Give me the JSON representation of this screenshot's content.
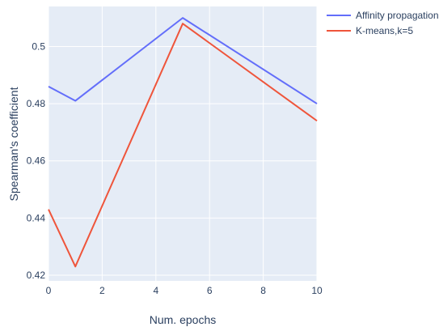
{
  "chart_data": {
    "type": "line",
    "title": "",
    "xlabel": "Num. epochs",
    "ylabel": "Spearman's coefficient",
    "xlim": [
      0,
      10
    ],
    "ylim": [
      0.418,
      0.514
    ],
    "x_ticks": [
      0,
      2,
      4,
      6,
      8,
      10
    ],
    "x_tick_labels": [
      "0",
      "2",
      "4",
      "6",
      "8",
      "10"
    ],
    "y_ticks": [
      0.42,
      0.44,
      0.46,
      0.48,
      0.5
    ],
    "y_tick_labels": [
      "0.42",
      "0.44",
      "0.46",
      "0.48",
      "0.5"
    ],
    "grid": true,
    "legend_position": "top-right outside",
    "series": [
      {
        "name": "Affinity propagation",
        "color": "#636efa",
        "x": [
          0,
          1,
          5,
          10
        ],
        "y": [
          0.486,
          0.481,
          0.51,
          0.48
        ]
      },
      {
        "name": "K-means,k=5",
        "color": "#ef553b",
        "x": [
          0,
          1,
          5,
          10
        ],
        "y": [
          0.443,
          0.423,
          0.508,
          0.474
        ]
      }
    ]
  }
}
